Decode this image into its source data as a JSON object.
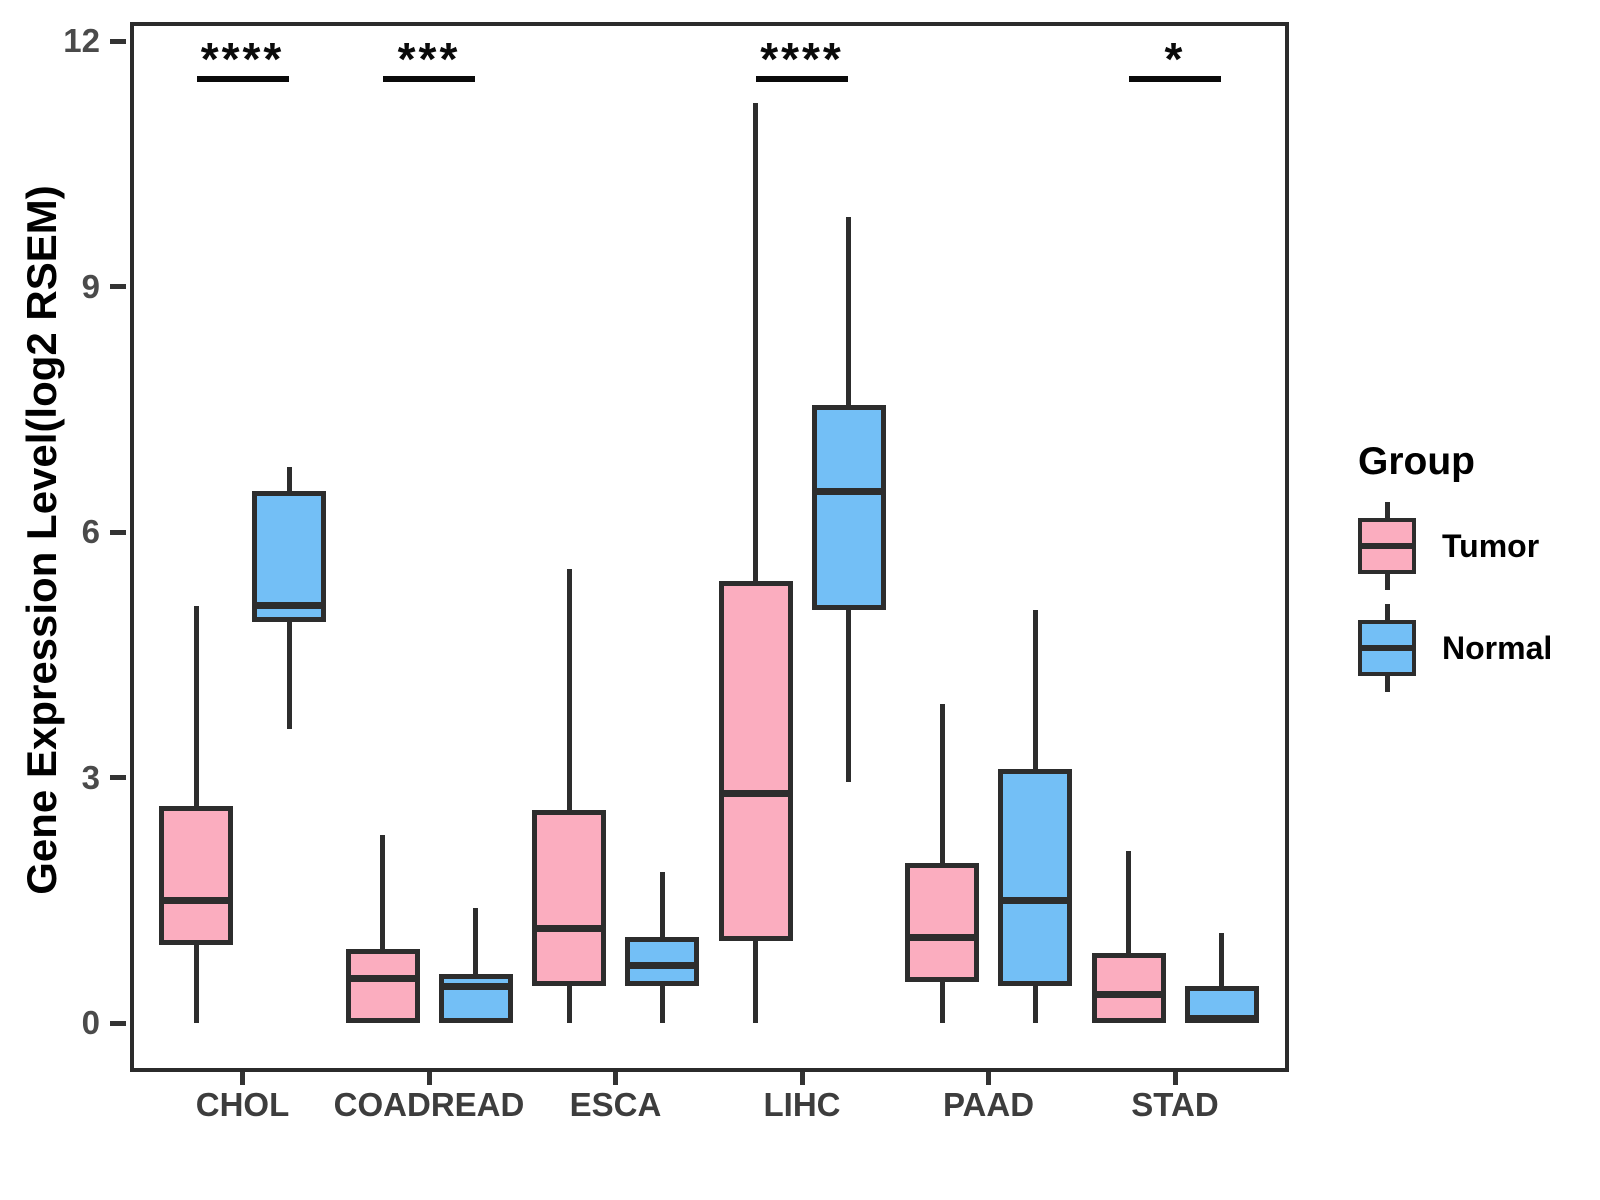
{
  "chart_data": {
    "type": "boxplot",
    "title": "",
    "ylabel": "Gene Expression Level(log2 RSEM)",
    "xlabel": "",
    "ylim": [
      -0.6,
      12.3
    ],
    "yticks": [
      0,
      3,
      6,
      9,
      12
    ],
    "grid": false,
    "legend_position": "right",
    "categories": [
      "CHOL",
      "COADREAD",
      "ESCA",
      "LIHC",
      "PAAD",
      "STAD"
    ],
    "series": [
      {
        "name": "Tumor",
        "color": "#FBADBF",
        "boxes": [
          {
            "category": "CHOL",
            "min": 0,
            "q1": 0.95,
            "median": 1.5,
            "q3": 2.65,
            "max": 5.1
          },
          {
            "category": "COADREAD",
            "min": 0,
            "q1": 0,
            "median": 0.55,
            "q3": 0.9,
            "max": 2.3
          },
          {
            "category": "ESCA",
            "min": 0,
            "q1": 0.45,
            "median": 1.15,
            "q3": 2.6,
            "max": 5.55
          },
          {
            "category": "LIHC",
            "min": 0,
            "q1": 1.0,
            "median": 2.8,
            "q3": 5.4,
            "max": 11.25
          },
          {
            "category": "PAAD",
            "min": 0,
            "q1": 0.5,
            "median": 1.05,
            "q3": 1.95,
            "max": 3.9
          },
          {
            "category": "STAD",
            "min": 0,
            "q1": 0,
            "median": 0.35,
            "q3": 0.85,
            "max": 2.1
          }
        ]
      },
      {
        "name": "Normal",
        "color": "#73BFF6",
        "boxes": [
          {
            "category": "CHOL",
            "min": 3.6,
            "q1": 4.9,
            "median": 5.1,
            "q3": 6.5,
            "max": 6.8
          },
          {
            "category": "COADREAD",
            "min": 0,
            "q1": 0,
            "median": 0.45,
            "q3": 0.6,
            "max": 1.4
          },
          {
            "category": "ESCA",
            "min": 0,
            "q1": 0.45,
            "median": 0.7,
            "q3": 1.05,
            "max": 1.85
          },
          {
            "category": "LIHC",
            "min": 2.95,
            "q1": 5.05,
            "median": 6.5,
            "q3": 7.55,
            "max": 9.85
          },
          {
            "category": "PAAD",
            "min": 0,
            "q1": 0.45,
            "median": 1.5,
            "q3": 3.1,
            "max": 5.05
          },
          {
            "category": "STAD",
            "min": 0,
            "q1": 0,
            "median": 0.05,
            "q3": 0.45,
            "max": 1.1
          }
        ]
      }
    ],
    "significance": [
      {
        "category": "CHOL",
        "label": "****"
      },
      {
        "category": "COADREAD",
        "label": "***"
      },
      {
        "category": "LIHC",
        "label": "****"
      },
      {
        "category": "STAD",
        "label": "*"
      }
    ]
  },
  "legend": {
    "title": "Group",
    "entries": [
      {
        "label": "Tumor",
        "color": "#FBADBF"
      },
      {
        "label": "Normal",
        "color": "#73BFF6"
      }
    ]
  },
  "colors": {
    "tumor_fill": "#FBADBF",
    "normal_fill": "#73BFF6",
    "line": "#2d2d2d",
    "axis_text": "#4a4a4a",
    "category_text": "#3d3d3d"
  }
}
